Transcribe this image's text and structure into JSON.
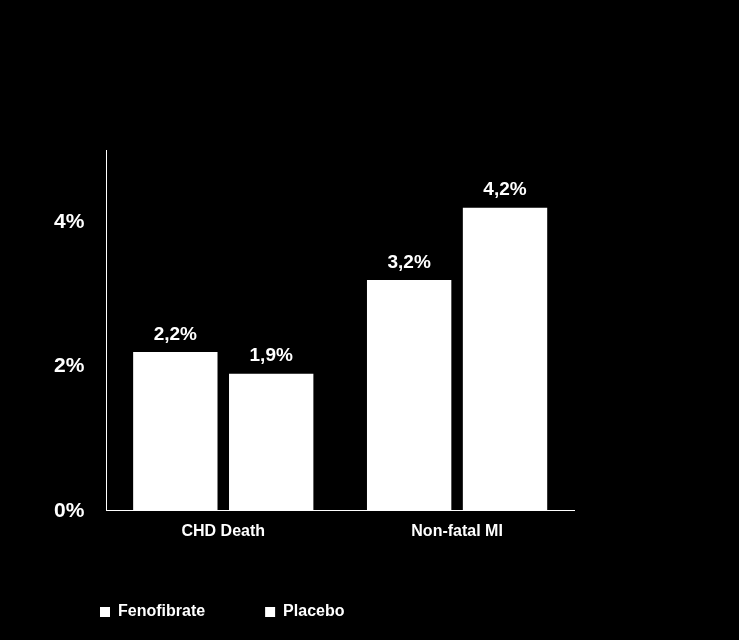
{
  "chart_data": {
    "type": "bar",
    "categories": [
      "CHD Death",
      "Non-fatal MI"
    ],
    "series": [
      {
        "name": "Fenofibrate",
        "color": "#ffffff",
        "values": [
          2.2,
          3.2
        ],
        "value_labels": [
          "2,2%",
          "3,2%"
        ]
      },
      {
        "name": "Placebo",
        "color": "#ffffff",
        "values": [
          1.9,
          4.2
        ],
        "value_labels": [
          "1,9%",
          "4,2%"
        ]
      }
    ],
    "ylim": [
      0,
      5
    ],
    "yticks": [
      {
        "value": 0,
        "label": "0%"
      },
      {
        "value": 2,
        "label": "2%"
      },
      {
        "value": 4,
        "label": "4%"
      }
    ],
    "grid": false,
    "legend": "bottom",
    "data_labels": true
  }
}
